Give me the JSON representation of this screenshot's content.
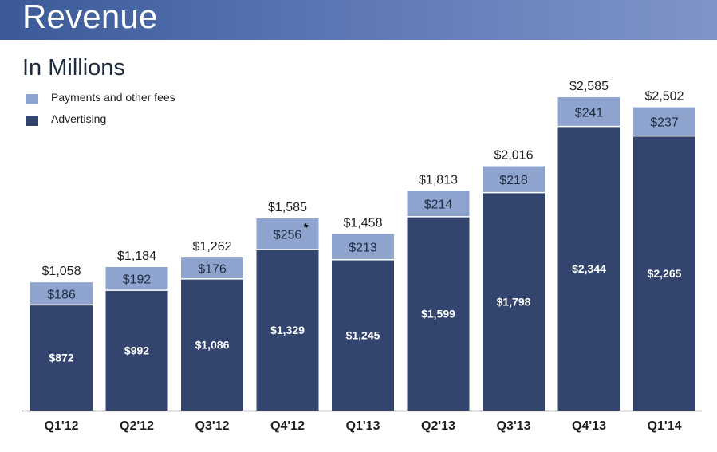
{
  "header": {
    "title": "Revenue"
  },
  "subtitle": "In Millions",
  "colors": {
    "header": "#3b5998",
    "payments": "#8fa3cf",
    "advertising": "#33456e",
    "axis": "#333333"
  },
  "chart_data": {
    "type": "bar",
    "stacked": true,
    "title": "Revenue",
    "subtitle": "In Millions",
    "xlabel": "",
    "ylabel": "",
    "categories": [
      "Q1'12",
      "Q2'12",
      "Q3'12",
      "Q4'12",
      "Q1'13",
      "Q2'13",
      "Q3'13",
      "Q4'13",
      "Q1'14"
    ],
    "series": [
      {
        "name": "Advertising",
        "values": [
          872,
          992,
          1086,
          1329,
          1245,
          1599,
          1798,
          2344,
          2265
        ],
        "labels": [
          "$872",
          "$992",
          "$1,086",
          "$1,329",
          "$1,245",
          "$1,599",
          "$1,798",
          "$2,344",
          "$2,265"
        ]
      },
      {
        "name": "Payments and other fees",
        "values": [
          186,
          192,
          176,
          256,
          213,
          214,
          218,
          241,
          237
        ],
        "labels": [
          "$186",
          "$192",
          "$176",
          "$256",
          "$213",
          "$214",
          "$218",
          "$241",
          "$237"
        ]
      }
    ],
    "totals": [
      1058,
      1184,
      1262,
      1585,
      1458,
      1813,
      2016,
      2585,
      2502
    ],
    "total_labels": [
      "$1,058",
      "$1,184",
      "$1,262",
      "$1,585",
      "$1,458",
      "$1,813",
      "$2,016",
      "$2,585",
      "$2,502"
    ],
    "annotations": [
      {
        "category": "Q4'12",
        "series": "Payments and other fees",
        "text": "*"
      }
    ],
    "ylim": [
      0,
      2620
    ],
    "grid": false,
    "legend_position": "top-left"
  }
}
